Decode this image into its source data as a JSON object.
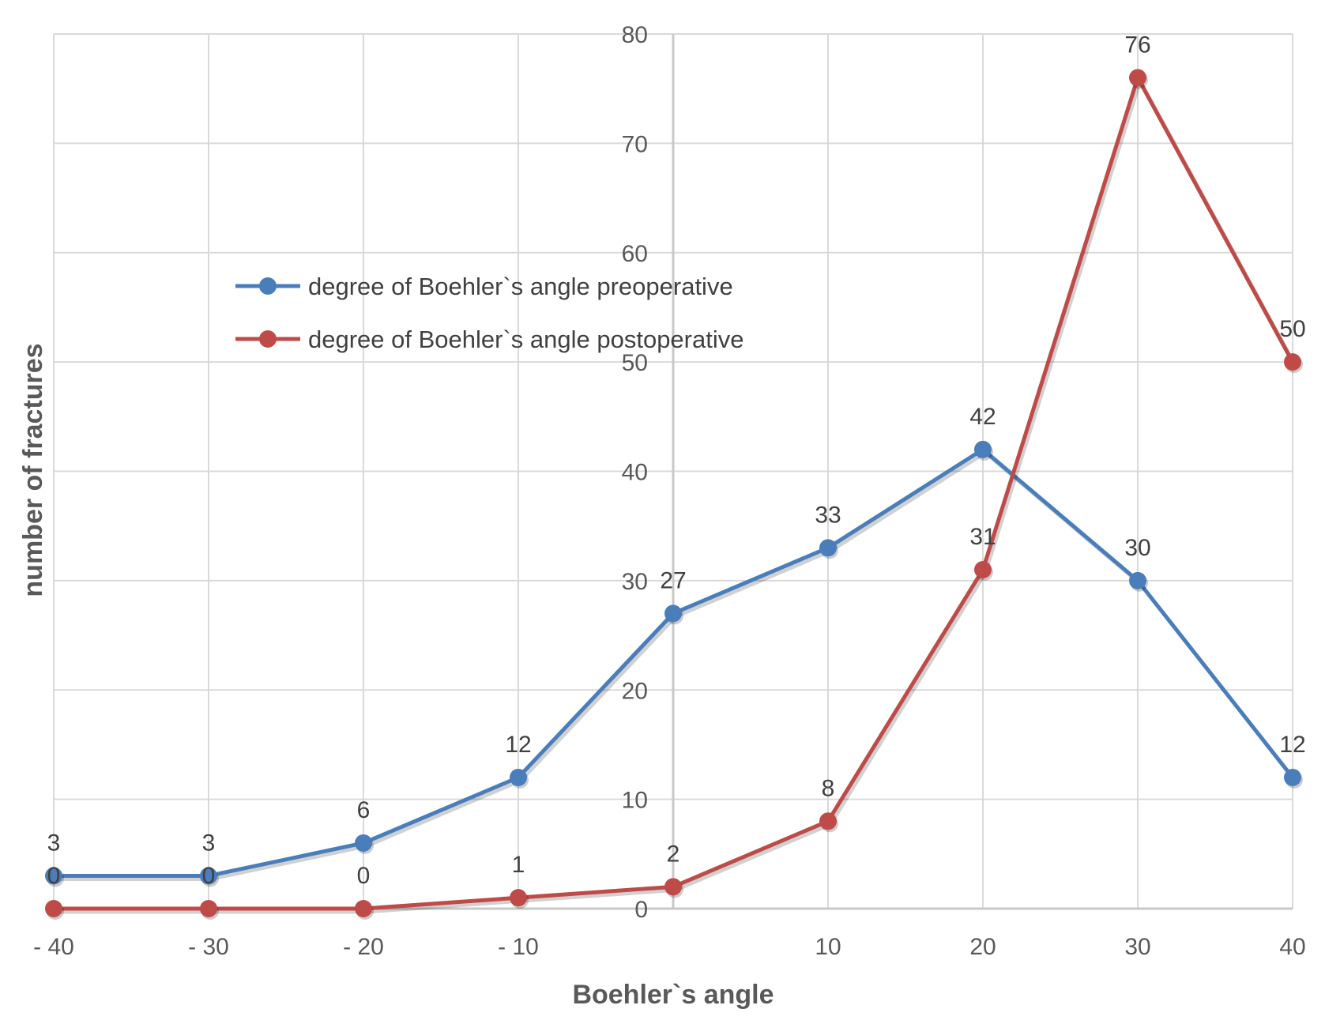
{
  "chart_data": {
    "type": "line",
    "title": "",
    "xlabel": "Boehler`s angle",
    "ylabel": "number of fractures",
    "x": [
      -40,
      -30,
      -20,
      -10,
      0,
      10,
      20,
      30,
      40
    ],
    "x_tick_labels": [
      "- 40",
      "- 30",
      "- 20",
      "- 10",
      "10",
      "20",
      "30",
      "40"
    ],
    "x_tick_values": [
      -40,
      -30,
      -20,
      -10,
      10,
      20,
      30,
      40
    ],
    "xlim": [
      -40,
      40
    ],
    "ylim": [
      0,
      80
    ],
    "y_ticks": [
      0,
      10,
      20,
      30,
      40,
      50,
      60,
      70,
      80
    ],
    "grid": true,
    "legend_position": "upper-left",
    "series": [
      {
        "name": "degree of Boehler`s angle preoperative",
        "color": "#4a7ebb",
        "values": [
          3,
          3,
          6,
          12,
          27,
          33,
          42,
          30,
          12
        ]
      },
      {
        "name": "degree of Boehler`s angle postoperative",
        "color": "#be4b48",
        "values": [
          0,
          0,
          0,
          1,
          2,
          8,
          31,
          76,
          50
        ]
      }
    ]
  }
}
